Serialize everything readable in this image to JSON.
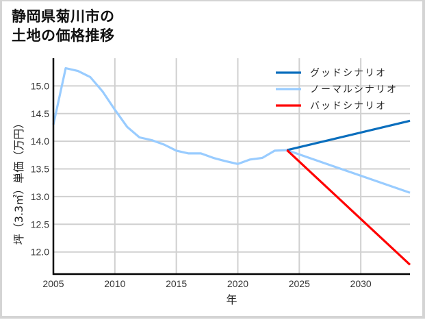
{
  "title": {
    "line1": "静岡県菊川市の",
    "line2": "土地の価格推移"
  },
  "chart_data": {
    "type": "line",
    "title": "静岡県菊川市の土地の価格推移",
    "xlabel": "年",
    "ylabel": "坪（3.3㎡）単価（万円）",
    "xlim": [
      2005,
      2034
    ],
    "ylim": [
      11.6,
      15.5
    ],
    "xticks": [
      2005,
      2010,
      2015,
      2020,
      2025,
      2030
    ],
    "yticks": [
      12.0,
      12.5,
      13.0,
      13.5,
      14.0,
      14.5,
      15.0
    ],
    "grid": true,
    "legend_position": "upper right",
    "series": [
      {
        "name": "グッドシナリオ",
        "color": "#0a6ebd",
        "x": [
          2024,
          2034
        ],
        "values": [
          13.84,
          14.37
        ]
      },
      {
        "name": "ノーマルシナリオ",
        "color": "#99ccff",
        "x": [
          2005,
          2006,
          2007,
          2008,
          2009,
          2010,
          2011,
          2012,
          2013,
          2014,
          2015,
          2016,
          2017,
          2018,
          2019,
          2020,
          2021,
          2022,
          2023,
          2024,
          2034
        ],
        "values": [
          14.3,
          15.32,
          15.27,
          15.16,
          14.9,
          14.57,
          14.26,
          14.07,
          14.02,
          13.94,
          13.83,
          13.78,
          13.78,
          13.7,
          13.64,
          13.59,
          13.67,
          13.7,
          13.83,
          13.84,
          13.07
        ]
      },
      {
        "name": "バッドシナリオ",
        "color": "#ff0000",
        "x": [
          2024,
          2034
        ],
        "values": [
          13.84,
          11.77
        ]
      }
    ]
  }
}
